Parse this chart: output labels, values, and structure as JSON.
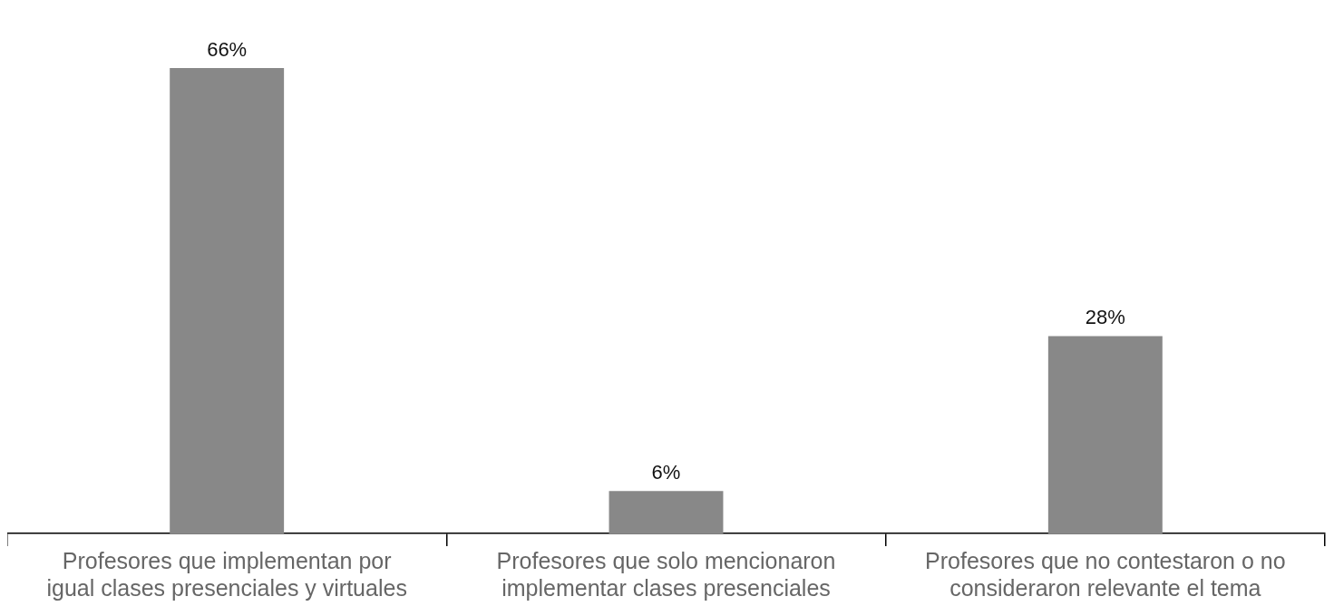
{
  "chart_data": {
    "type": "bar",
    "categories": [
      "Profesores que implementan por igual clases presenciales y virtuales",
      "Profesores que solo mencionaron implementar clases presenciales",
      "Profesores que no contestaron o no consideraron relevante el tema"
    ],
    "values": [
      66,
      6,
      28
    ],
    "value_labels": [
      "66%",
      "6%",
      "28%"
    ],
    "color": "#888888",
    "grid": false,
    "legend": false
  }
}
